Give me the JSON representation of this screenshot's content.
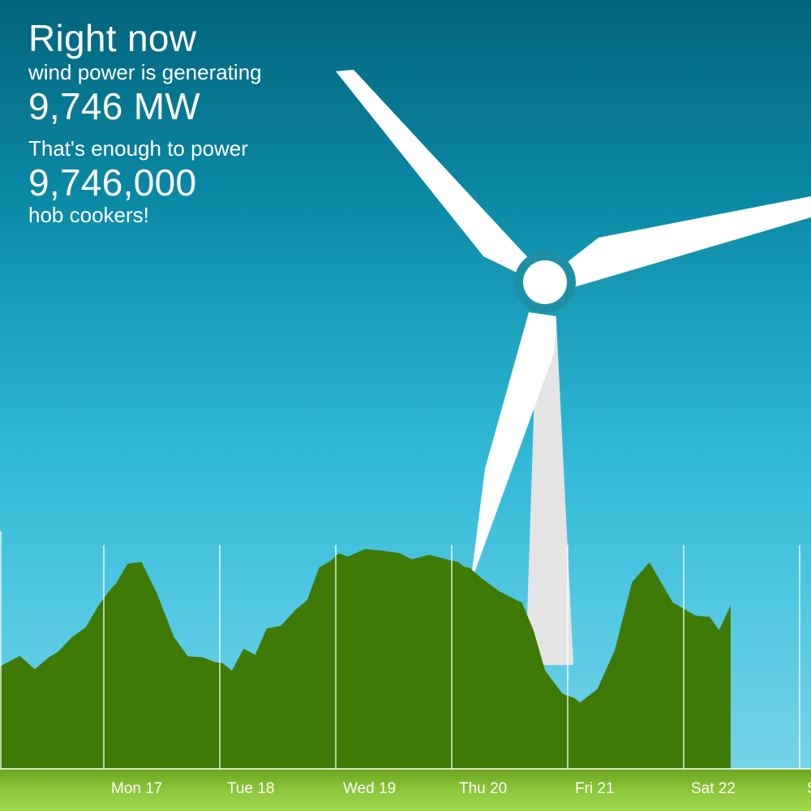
{
  "info": {
    "headline": "Right now",
    "generating_text": "wind power is generating",
    "current_output": "9,746 MW",
    "comparison_text": "That's enough to power",
    "equivalent_count": "9,746,000",
    "appliance_text": "hob cookers!"
  },
  "chart_data": {
    "type": "area",
    "x_labels": [
      "Mon 17",
      "Tue 18",
      "Wed 19",
      "Thu 20",
      "Fri 21",
      "Sat 22",
      "S"
    ],
    "xlabel": "",
    "ylabel": "",
    "grid": true,
    "series": [
      {
        "color": "#3f7a06",
        "x": [
          0,
          0.17,
          0.3,
          0.42,
          0.5,
          0.62,
          0.74,
          0.85,
          0.95,
          1.0,
          1.1,
          1.22,
          1.35,
          1.5,
          1.62,
          1.75,
          1.85,
          1.92,
          2.0,
          2.1,
          2.2,
          2.3,
          2.42,
          2.55,
          2.65,
          2.75,
          2.85,
          2.92,
          3.0,
          3.15,
          3.3,
          3.45,
          3.55,
          3.7,
          3.85,
          3.95,
          4.0,
          4.05,
          4.15,
          4.3,
          4.45,
          4.5,
          4.6,
          4.7,
          4.85,
          4.95,
          5.0,
          5.15,
          5.3,
          5.45,
          5.6,
          5.8,
          6.0,
          6.12,
          6.2,
          6.3
        ],
        "values": [
          7200,
          7700,
          7000,
          7600,
          8200,
          9000,
          9900,
          11200,
          12500,
          12700,
          14300,
          14200,
          12300,
          9000,
          7900,
          7600,
          7500,
          7200,
          6900,
          8200,
          8000,
          9600,
          10000,
          10900,
          11800,
          13800,
          14500,
          14800,
          14800,
          15100,
          15200,
          14800,
          14600,
          14700,
          14600,
          14200,
          14100,
          13800,
          13300,
          12200,
          11800,
          11400,
          9700,
          6700,
          5300,
          4800,
          4700,
          5400,
          8300,
          12800,
          14400,
          11400,
          10700,
          10400,
          9700,
          11200
        ]
      }
    ]
  }
}
